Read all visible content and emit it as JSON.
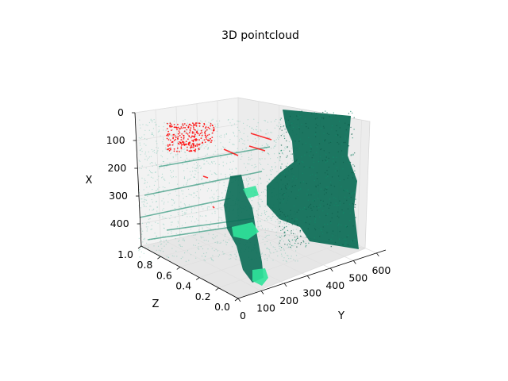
{
  "chart_data": {
    "type": "scatter",
    "projection": "3d",
    "title": "3D pointcloud",
    "xlabel": "X",
    "ylabel": "Y",
    "zlabel": "Z",
    "x_ticks": [
      "0",
      "100",
      "200",
      "300",
      "400"
    ],
    "y_ticks": [
      "0",
      "100",
      "200",
      "300",
      "400",
      "500",
      "600"
    ],
    "z_ticks": [
      "0.0",
      "0.2",
      "0.4",
      "0.6",
      "0.8",
      "1.0"
    ],
    "xlim": [
      0,
      480
    ],
    "ylim": [
      0,
      640
    ],
    "zlim": [
      0,
      1
    ],
    "grid": true,
    "colors": {
      "cloud_dark": "#0a6b55",
      "cloud_mid": "#138a6a",
      "cloud_light": "#2fe39a",
      "cloud_sparse": "#5fbfa6",
      "highlight": "#ff0000",
      "pane": "#f2f2f2",
      "grid": "#e0e0e0"
    }
  }
}
